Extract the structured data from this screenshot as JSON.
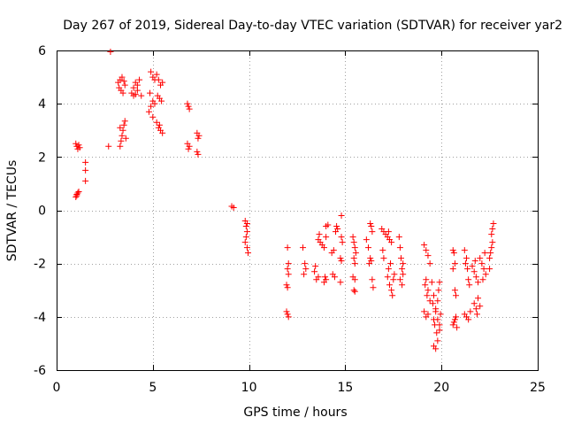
{
  "chart_data": {
    "type": "scatter",
    "title": "Day 267 of 2019, Sidereal Day-to-day VTEC variation (SDTVAR) for receiver yar2",
    "xlabel": "GPS time / hours",
    "ylabel": "SDTVAR / TECUs",
    "xlim": [
      0,
      25
    ],
    "ylim": [
      -6,
      6
    ],
    "xticks": [
      0,
      5,
      10,
      15,
      20,
      25
    ],
    "yticks": [
      -6,
      -4,
      -2,
      0,
      2,
      4,
      6
    ],
    "xtick_labels": [
      "0",
      "5",
      "10",
      "15",
      "20",
      "25"
    ],
    "ytick_labels": [
      "-6",
      "-4",
      "-2",
      "0",
      "2",
      "4",
      "6"
    ],
    "grid": true,
    "marker": "+",
    "color": "#ff0000",
    "series": [
      {
        "name": "SDTVAR",
        "points": [
          [
            1.0,
            0.5
          ],
          [
            1.05,
            0.6
          ],
          [
            1.1,
            0.65
          ],
          [
            1.15,
            0.7
          ],
          [
            1.05,
            0.55
          ],
          [
            1.0,
            2.5
          ],
          [
            1.05,
            2.4
          ],
          [
            1.1,
            2.3
          ],
          [
            1.15,
            2.45
          ],
          [
            1.2,
            2.35
          ],
          [
            1.5,
            1.8
          ],
          [
            1.5,
            1.5
          ],
          [
            1.5,
            1.1
          ],
          [
            2.8,
            5.95
          ],
          [
            2.7,
            2.4
          ],
          [
            3.3,
            2.4
          ],
          [
            3.35,
            2.6
          ],
          [
            3.4,
            2.8
          ],
          [
            3.45,
            3.0
          ],
          [
            3.5,
            3.2
          ],
          [
            3.55,
            3.35
          ],
          [
            3.6,
            2.7
          ],
          [
            3.3,
            3.1
          ],
          [
            3.2,
            4.8
          ],
          [
            3.25,
            4.6
          ],
          [
            3.3,
            4.9
          ],
          [
            3.35,
            4.5
          ],
          [
            3.4,
            5.0
          ],
          [
            3.45,
            4.4
          ],
          [
            3.5,
            4.85
          ],
          [
            3.55,
            4.7
          ],
          [
            3.9,
            4.4
          ],
          [
            4.0,
            4.6
          ],
          [
            4.1,
            4.8
          ],
          [
            4.2,
            4.5
          ],
          [
            4.3,
            4.9
          ],
          [
            4.4,
            4.3
          ],
          [
            4.0,
            4.3
          ],
          [
            4.2,
            4.7
          ],
          [
            4.1,
            4.35
          ],
          [
            4.8,
            3.7
          ],
          [
            4.9,
            3.9
          ],
          [
            5.0,
            4.1
          ],
          [
            5.1,
            4.0
          ],
          [
            4.9,
            5.2
          ],
          [
            5.0,
            5.0
          ],
          [
            5.1,
            4.9
          ],
          [
            4.85,
            4.4
          ],
          [
            5.0,
            3.5
          ],
          [
            5.2,
            5.1
          ],
          [
            5.3,
            4.9
          ],
          [
            5.4,
            4.7
          ],
          [
            5.5,
            4.8
          ],
          [
            5.25,
            4.3
          ],
          [
            5.35,
            4.2
          ],
          [
            5.45,
            4.1
          ],
          [
            5.2,
            3.3
          ],
          [
            5.3,
            3.1
          ],
          [
            5.4,
            3.0
          ],
          [
            5.5,
            2.9
          ],
          [
            5.35,
            3.2
          ],
          [
            6.8,
            4.0
          ],
          [
            6.85,
            3.9
          ],
          [
            6.9,
            3.8
          ],
          [
            6.8,
            2.5
          ],
          [
            6.85,
            2.3
          ],
          [
            6.9,
            2.4
          ],
          [
            7.3,
            2.9
          ],
          [
            7.35,
            2.7
          ],
          [
            7.4,
            2.8
          ],
          [
            7.3,
            2.2
          ],
          [
            7.35,
            2.1
          ],
          [
            9.1,
            0.15
          ],
          [
            9.2,
            0.1
          ],
          [
            9.8,
            -0.4
          ],
          [
            9.85,
            -0.6
          ],
          [
            9.9,
            -0.8
          ],
          [
            9.85,
            -1.0
          ],
          [
            9.8,
            -1.2
          ],
          [
            9.9,
            -1.4
          ],
          [
            9.95,
            -1.6
          ],
          [
            9.9,
            -0.5
          ],
          [
            12.0,
            -1.4
          ],
          [
            12.05,
            -2.0
          ],
          [
            12.0,
            -2.2
          ],
          [
            12.05,
            -2.4
          ],
          [
            11.95,
            -2.8
          ],
          [
            12.0,
            -2.9
          ],
          [
            11.95,
            -3.8
          ],
          [
            12.0,
            -3.9
          ],
          [
            12.05,
            -4.0
          ],
          [
            12.8,
            -1.4
          ],
          [
            12.9,
            -2.0
          ],
          [
            12.85,
            -2.4
          ],
          [
            12.95,
            -2.2
          ],
          [
            13.4,
            -2.3
          ],
          [
            13.5,
            -2.6
          ],
          [
            13.6,
            -2.5
          ],
          [
            13.45,
            -2.1
          ],
          [
            13.6,
            -1.1
          ],
          [
            13.7,
            -1.2
          ],
          [
            13.8,
            -1.3
          ],
          [
            13.65,
            -0.9
          ],
          [
            13.9,
            -1.4
          ],
          [
            14.0,
            -1.0
          ],
          [
            13.9,
            -2.7
          ],
          [
            14.0,
            -2.6
          ],
          [
            13.95,
            -2.5
          ],
          [
            14.0,
            -0.6
          ],
          [
            14.1,
            -0.55
          ],
          [
            14.3,
            -1.6
          ],
          [
            14.4,
            -1.5
          ],
          [
            14.35,
            -2.4
          ],
          [
            14.45,
            -2.5
          ],
          [
            14.5,
            -0.8
          ],
          [
            14.55,
            -0.6
          ],
          [
            14.6,
            -0.7
          ],
          [
            14.8,
            -0.2
          ],
          [
            14.8,
            -1.0
          ],
          [
            14.85,
            -1.2
          ],
          [
            14.75,
            -1.8
          ],
          [
            14.8,
            -1.9
          ],
          [
            14.75,
            -2.7
          ],
          [
            15.4,
            -1.0
          ],
          [
            15.45,
            -1.2
          ],
          [
            15.5,
            -1.4
          ],
          [
            15.55,
            -1.6
          ],
          [
            15.45,
            -1.8
          ],
          [
            15.5,
            -2.0
          ],
          [
            15.4,
            -2.5
          ],
          [
            15.5,
            -2.6
          ],
          [
            15.45,
            -3.0
          ],
          [
            15.5,
            -3.05
          ],
          [
            16.1,
            -1.1
          ],
          [
            16.2,
            -1.4
          ],
          [
            16.3,
            -1.8
          ],
          [
            16.25,
            -2.0
          ],
          [
            16.35,
            -0.6
          ],
          [
            16.4,
            -0.8
          ],
          [
            16.3,
            -0.5
          ],
          [
            16.35,
            -1.9
          ],
          [
            16.4,
            -2.6
          ],
          [
            16.45,
            -2.9
          ],
          [
            16.9,
            -0.7
          ],
          [
            17.0,
            -0.8
          ],
          [
            16.95,
            -1.5
          ],
          [
            17.0,
            -1.8
          ],
          [
            17.1,
            -0.9
          ],
          [
            17.2,
            -1.0
          ],
          [
            17.3,
            -1.1
          ],
          [
            17.4,
            -1.2
          ],
          [
            17.25,
            -0.8
          ],
          [
            17.2,
            -2.5
          ],
          [
            17.3,
            -2.8
          ],
          [
            17.4,
            -3.0
          ],
          [
            17.5,
            -2.6
          ],
          [
            17.25,
            -2.2
          ],
          [
            17.35,
            -2.0
          ],
          [
            17.45,
            -3.2
          ],
          [
            17.55,
            -2.4
          ],
          [
            17.8,
            -1.0
          ],
          [
            17.85,
            -1.4
          ],
          [
            17.9,
            -1.8
          ],
          [
            17.95,
            -2.2
          ],
          [
            18.0,
            -2.4
          ],
          [
            17.85,
            -2.6
          ],
          [
            17.95,
            -2.8
          ],
          [
            18.0,
            -2.0
          ],
          [
            19.1,
            -1.3
          ],
          [
            19.2,
            -1.5
          ],
          [
            19.3,
            -1.7
          ],
          [
            19.4,
            -2.0
          ],
          [
            19.2,
            -2.6
          ],
          [
            19.3,
            -3.0
          ],
          [
            19.4,
            -3.4
          ],
          [
            19.25,
            -3.2
          ],
          [
            19.15,
            -2.8
          ],
          [
            19.1,
            -3.8
          ],
          [
            19.2,
            -4.0
          ],
          [
            19.3,
            -3.9
          ],
          [
            19.5,
            -2.7
          ],
          [
            19.6,
            -3.2
          ],
          [
            19.7,
            -3.7
          ],
          [
            19.8,
            -4.1
          ],
          [
            19.9,
            -4.5
          ],
          [
            19.6,
            -5.1
          ],
          [
            19.7,
            -5.2
          ],
          [
            19.8,
            -4.9
          ],
          [
            19.9,
            -4.3
          ],
          [
            19.75,
            -4.6
          ],
          [
            19.6,
            -4.1
          ],
          [
            19.7,
            -3.8
          ],
          [
            19.8,
            -3.4
          ],
          [
            19.85,
            -3.0
          ],
          [
            19.9,
            -2.7
          ],
          [
            19.55,
            -3.5
          ],
          [
            19.65,
            -4.3
          ],
          [
            19.95,
            -3.9
          ],
          [
            20.6,
            -1.5
          ],
          [
            20.65,
            -1.6
          ],
          [
            20.7,
            -2.0
          ],
          [
            20.6,
            -2.2
          ],
          [
            20.7,
            -3.0
          ],
          [
            20.75,
            -3.2
          ],
          [
            20.6,
            -4.3
          ],
          [
            20.65,
            -4.2
          ],
          [
            20.7,
            -4.1
          ],
          [
            20.75,
            -4.0
          ],
          [
            20.8,
            -4.4
          ],
          [
            21.2,
            -1.5
          ],
          [
            21.3,
            -1.8
          ],
          [
            21.35,
            -2.2
          ],
          [
            21.4,
            -2.6
          ],
          [
            21.25,
            -2.0
          ],
          [
            21.45,
            -2.8
          ],
          [
            21.2,
            -3.9
          ],
          [
            21.3,
            -4.0
          ],
          [
            21.4,
            -4.1
          ],
          [
            21.5,
            -3.8
          ],
          [
            21.6,
            -2.1
          ],
          [
            21.7,
            -2.3
          ],
          [
            21.8,
            -2.5
          ],
          [
            21.9,
            -2.7
          ],
          [
            21.75,
            -1.9
          ],
          [
            21.7,
            -3.5
          ],
          [
            21.8,
            -3.7
          ],
          [
            21.9,
            -3.3
          ],
          [
            22.0,
            -3.6
          ],
          [
            21.85,
            -3.9
          ],
          [
            22.0,
            -1.8
          ],
          [
            22.1,
            -2.0
          ],
          [
            22.2,
            -2.2
          ],
          [
            22.3,
            -2.4
          ],
          [
            22.15,
            -2.6
          ],
          [
            22.25,
            -1.6
          ],
          [
            22.5,
            -1.8
          ],
          [
            22.55,
            -1.6
          ],
          [
            22.6,
            -1.4
          ],
          [
            22.65,
            -1.2
          ],
          [
            22.6,
            -0.9
          ],
          [
            22.65,
            -0.7
          ],
          [
            22.7,
            -0.5
          ],
          [
            22.5,
            -2.2
          ]
        ]
      }
    ]
  }
}
